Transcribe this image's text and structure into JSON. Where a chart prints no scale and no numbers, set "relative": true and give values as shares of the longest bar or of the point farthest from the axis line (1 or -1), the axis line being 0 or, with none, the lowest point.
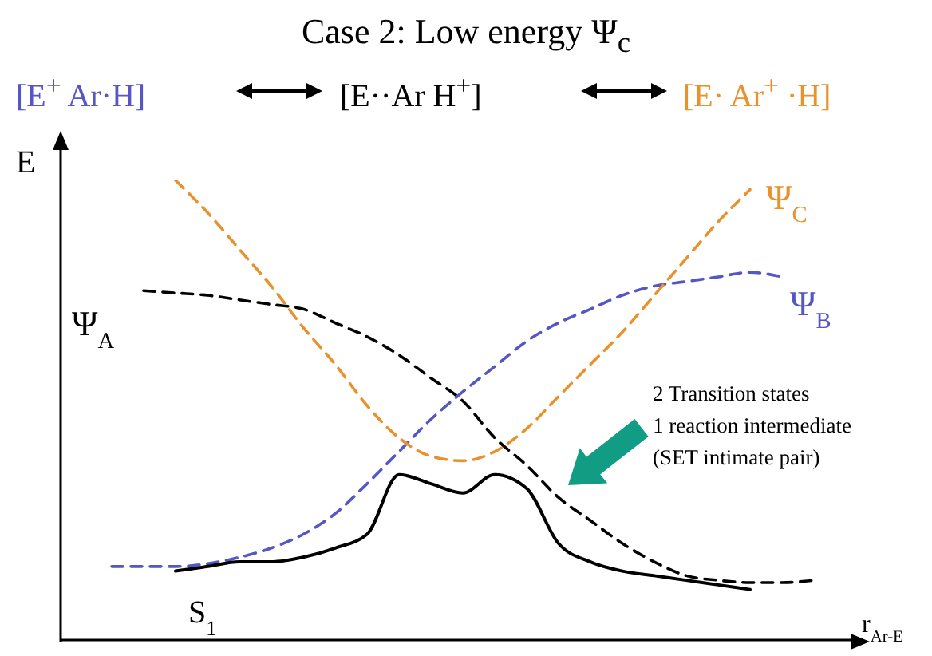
{
  "chart_data": {
    "type": "line",
    "relative": true,
    "title": "Case 2: Low energy Ψ$_{c}$",
    "annotations": [
      "[E$^{+}$  Ar·H]",
      "[E··Ar H$^{+}$]",
      "[E· Ar$^{+}$ ·H]",
      "2 Transition states\n1 reaction intermediate\n(SET intimate pair)"
    ],
    "ylabel": "E",
    "xlabel": "r$_{Ar-E}$",
    "categories": [
      null,
      null,
      null,
      null,
      null,
      null,
      null,
      null,
      null,
      null,
      null,
      null,
      null,
      null,
      null,
      null,
      null,
      null,
      null,
      null,
      null,
      null,
      null
    ],
    "marker": "none",
    "series": [
      {
        "name": "Ψ$_{A}$",
        "color": "#000000",
        "line_style": "dashed",
        "values": [
          null,
          0.76,
          0.755,
          0.75,
          0.74,
          0.73,
          0.72,
          0.69,
          0.66,
          0.62,
          0.57,
          0.52,
          0.44,
          0.38,
          0.31,
          0.26,
          0.21,
          0.17,
          0.14,
          0.13,
          0.125,
          0.125,
          0.13
        ]
      },
      {
        "name": "Ψ$_{B}$",
        "color": "#5656c4",
        "line_style": "dashed",
        "values": [
          0.16,
          0.16,
          0.16,
          0.166,
          0.18,
          0.2,
          0.23,
          0.275,
          0.34,
          0.41,
          0.48,
          0.54,
          0.595,
          0.65,
          0.69,
          0.72,
          0.75,
          0.77,
          0.78,
          0.79,
          0.8,
          0.79,
          null
        ]
      },
      {
        "name": "Ψ$_{C}$",
        "color": "#e8922e",
        "line_style": "dashed",
        "values": [
          null,
          null,
          1.0,
          0.93,
          0.85,
          0.77,
          0.68,
          0.6,
          0.51,
          0.44,
          0.4,
          0.39,
          0.41,
          0.46,
          0.53,
          0.6,
          0.67,
          0.75,
          0.83,
          0.91,
          0.98,
          null,
          null
        ]
      },
      {
        "name": "S$_{1}$",
        "color": "#000000",
        "line_style": "solid",
        "values": [
          null,
          null,
          0.15,
          0.16,
          0.17,
          0.17,
          0.18,
          0.2,
          0.23,
          0.36,
          0.34,
          0.32,
          0.36,
          0.33,
          0.21,
          0.17,
          0.15,
          0.14,
          0.13,
          0.12,
          0.11,
          null,
          null
        ]
      }
    ]
  }
}
